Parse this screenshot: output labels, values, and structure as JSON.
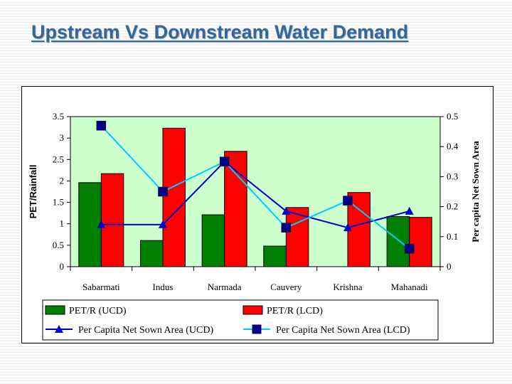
{
  "slide": {
    "title": "Upstream Vs Downstream Water Demand"
  },
  "chart_data": {
    "type": "bar",
    "categories": [
      "Sabarmati",
      "Indus",
      "Narmada",
      "Cauvery",
      "Krishna",
      "Mahanadi"
    ],
    "ylabel": "PET/Rainfall",
    "y2label": "Per capita Net Sown Area",
    "ylim": [
      0,
      3.5
    ],
    "y2lim": [
      0,
      0.5
    ],
    "yticks": [
      "0",
      "0.5",
      "1",
      "1.5",
      "2",
      "2.5",
      "3",
      "3.5"
    ],
    "y2ticks": [
      "0",
      "0.1",
      "0.2",
      "0.3",
      "0.4",
      "0.5"
    ],
    "plot_background": "#ccffcc",
    "grid": false,
    "legend_position": "bottom",
    "series": [
      {
        "name": "PET/R (UCD)",
        "type": "bar",
        "axis": "left",
        "color": "#008000",
        "values": [
          1.96,
          0.61,
          1.21,
          0.48,
          null,
          1.17
        ]
      },
      {
        "name": "PET/R (LCD)",
        "type": "bar",
        "axis": "left",
        "color": "#ff0000",
        "values": [
          2.17,
          3.23,
          2.69,
          1.38,
          1.73,
          1.15
        ]
      },
      {
        "name": "Per Capita Net Sown Area (UCD)",
        "type": "line",
        "axis": "right",
        "color": "#0000cc",
        "marker": "triangle",
        "values": [
          0.14,
          0.14,
          0.35,
          0.185,
          0.13,
          0.185
        ]
      },
      {
        "name": "Per Capita Net Sown Area (LCD)",
        "type": "line",
        "axis": "right",
        "color": "#00ccff",
        "marker": "square",
        "marker_color": "#000080",
        "values": [
          0.47,
          0.25,
          0.35,
          0.13,
          0.22,
          0.06
        ]
      }
    ]
  }
}
